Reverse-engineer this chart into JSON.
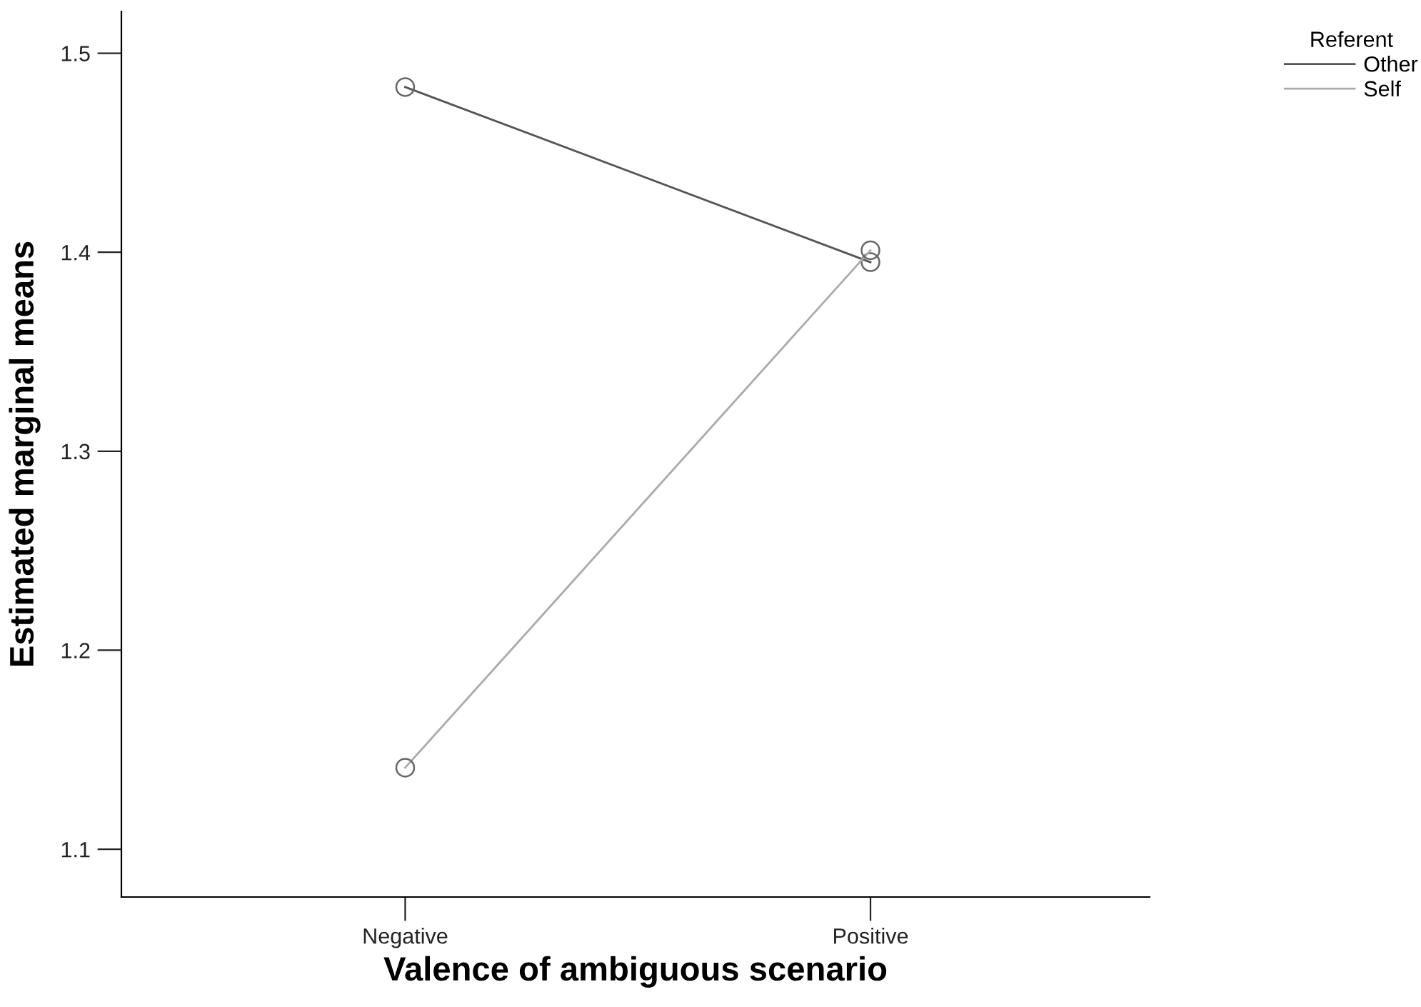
{
  "chart_data": {
    "type": "line",
    "xlabel": "Valence of ambiguous scenario",
    "ylabel": "Estimated marginal means",
    "legend_title": "Referent",
    "categories": [
      "Negative",
      "Positive"
    ],
    "series": [
      {
        "name": "Other",
        "color": "#555555",
        "values": [
          1.483,
          1.395
        ]
      },
      {
        "name": "Self",
        "color": "#aaaaaa",
        "values": [
          1.141,
          1.401
        ]
      }
    ],
    "ylim": [
      1.076,
      1.521
    ],
    "yticks": [
      1.1,
      1.2,
      1.3,
      1.4,
      1.5
    ],
    "marker": "circle",
    "line_style": "solid",
    "grid": false,
    "legend": "top right"
  }
}
